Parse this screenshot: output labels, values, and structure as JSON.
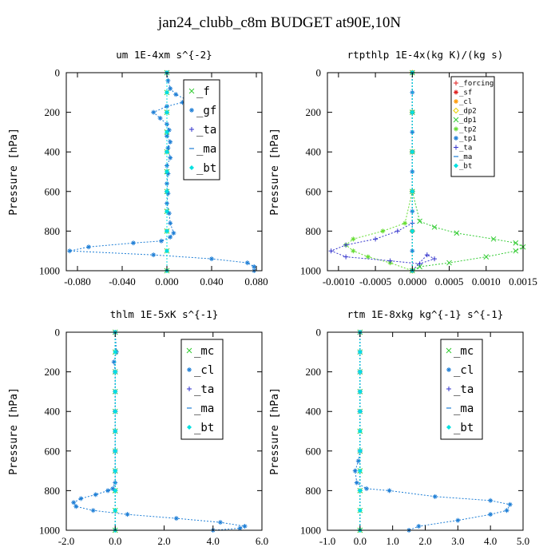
{
  "title": "jan24_clubb_c8m  BUDGET at90E,10N",
  "colors": {
    "green": "#33cc33",
    "blue": "#1f7fd6",
    "darkblue": "#3333cc",
    "cyan": "#00e0e0",
    "red": "#e02020",
    "orange": "#ff9900",
    "yellow": "#e8d000",
    "lime": "#66dd33",
    "frame": "#000000"
  },
  "chart_data": [
    {
      "type": "line",
      "title": "um   1E-4xm s^{-2}",
      "ylabel": "Pressure [hPa]",
      "xlim": [
        -0.09,
        0.085
      ],
      "ylim": [
        0,
        1000
      ],
      "y_reversed": true,
      "xticks": [
        -0.08,
        -0.04,
        0.0,
        0.04,
        0.08
      ],
      "xtick_labels": [
        "-0.080",
        "-0.040",
        "0.000",
        "0.040",
        "0.080"
      ],
      "yticks": [
        0,
        200,
        400,
        600,
        800,
        1000
      ],
      "ytick_labels": [
        "0",
        "200",
        "400",
        "600",
        "800",
        "1000"
      ],
      "legend_pos": "top-right",
      "series": [
        {
          "name": "_f",
          "color": "green",
          "marker": "x",
          "x": [
            0,
            0,
            0,
            0,
            0,
            0,
            0,
            0,
            0,
            0,
            0
          ],
          "y": [
            0,
            100,
            200,
            300,
            400,
            500,
            600,
            700,
            800,
            900,
            1000
          ]
        },
        {
          "name": "_gf",
          "color": "blue",
          "marker": "*",
          "x": [
            0,
            0.001,
            0.003,
            0.008,
            0.017,
            0.014,
            0.0,
            -0.012,
            -0.006,
            0.0,
            0.002,
            0.0,
            0.003,
            0.001,
            0.003,
            0.0,
            0.001,
            0.0,
            0.001,
            0.0,
            0.002,
            0.003,
            0.006,
            0.003,
            -0.005,
            -0.03,
            -0.07,
            -0.087,
            -0.012,
            0.04,
            0.072,
            0.078,
            0.078
          ],
          "y": [
            0,
            40,
            80,
            110,
            135,
            150,
            170,
            200,
            230,
            260,
            290,
            320,
            350,
            380,
            430,
            470,
            510,
            560,
            610,
            660,
            710,
            760,
            810,
            830,
            850,
            860,
            880,
            900,
            920,
            940,
            960,
            980,
            1000
          ]
        },
        {
          "name": "_ta",
          "color": "darkblue",
          "marker": "+",
          "x": [
            0,
            0,
            0,
            0,
            0,
            0
          ],
          "y": [
            0,
            200,
            400,
            600,
            800,
            1000
          ]
        },
        {
          "name": "_ma",
          "color": "blue",
          "marker": "-",
          "x": [
            0,
            0,
            0,
            0,
            0,
            0
          ],
          "y": [
            0,
            200,
            400,
            600,
            800,
            1000
          ]
        },
        {
          "name": "_bt",
          "color": "cyan",
          "marker": "◆",
          "x": [
            0,
            0,
            0,
            0,
            0,
            0,
            0,
            0,
            0,
            0,
            0
          ],
          "y": [
            0,
            100,
            200,
            300,
            400,
            500,
            600,
            700,
            800,
            900,
            1000
          ]
        }
      ]
    },
    {
      "type": "line",
      "title": "rtpthlp  1E-4x(kg K)/(kg s)",
      "ylabel": "Pressure [hPa]",
      "xlim": [
        -0.00115,
        0.0015
      ],
      "ylim": [
        0,
        1000
      ],
      "y_reversed": true,
      "xticks": [
        -0.001,
        -0.0005,
        0.0,
        0.0005,
        0.001,
        0.0015
      ],
      "xtick_labels": [
        "-0.0010",
        "-0.0005",
        "0.0000",
        "0.0005",
        "0.0010",
        "0.0015"
      ],
      "yticks": [
        0,
        200,
        400,
        600,
        800,
        1000
      ],
      "ytick_labels": [
        "0",
        "200",
        "400",
        "600",
        "800",
        "1000"
      ],
      "legend_pos": "top-right",
      "series": [
        {
          "name": "_forcing",
          "color": "red",
          "marker": "+",
          "x": [
            0,
            0,
            0,
            0,
            0,
            0
          ],
          "y": [
            0,
            200,
            400,
            600,
            800,
            1000
          ]
        },
        {
          "name": "_sf",
          "color": "red",
          "marker": "*",
          "x": [
            0,
            0,
            0,
            0,
            0,
            0
          ],
          "y": [
            0,
            200,
            400,
            600,
            800,
            1000
          ]
        },
        {
          "name": "_cl",
          "color": "orange",
          "marker": "*",
          "x": [
            0,
            0,
            0,
            0,
            0,
            0
          ],
          "y": [
            0,
            200,
            400,
            600,
            800,
            1000
          ]
        },
        {
          "name": "_dp2",
          "color": "yellow",
          "marker": "◇",
          "x": [
            0,
            0,
            0,
            0,
            0,
            0
          ],
          "y": [
            0,
            200,
            400,
            600,
            800,
            1000
          ]
        },
        {
          "name": "_dp1",
          "color": "green",
          "marker": "x",
          "x": [
            0,
            0,
            0,
            0,
            0.0001,
            0.0003,
            0.0006,
            0.0011,
            0.0014,
            0.0015,
            0.0014,
            0.001,
            0.0005,
            0.0001,
            0
          ],
          "y": [
            0,
            200,
            400,
            600,
            750,
            780,
            810,
            840,
            860,
            880,
            900,
            930,
            960,
            980,
            1000
          ]
        },
        {
          "name": "_tp2",
          "color": "lime",
          "marker": "*",
          "x": [
            0,
            0,
            0,
            0,
            -0.0001,
            -0.0004,
            -0.0008,
            -0.0009,
            -0.0008,
            -0.0006,
            -0.0003,
            0
          ],
          "y": [
            0,
            200,
            400,
            600,
            760,
            800,
            840,
            870,
            900,
            930,
            960,
            1000
          ]
        },
        {
          "name": "_tp1",
          "color": "blue",
          "marker": "*",
          "x": [
            0,
            0,
            0,
            0,
            0,
            0,
            0,
            0,
            0,
            0,
            0
          ],
          "y": [
            0,
            100,
            200,
            300,
            400,
            500,
            600,
            700,
            800,
            900,
            1000
          ]
        },
        {
          "name": "_ta",
          "color": "darkblue",
          "marker": "+",
          "x": [
            0,
            0,
            0,
            -0.0002,
            -0.0005,
            -0.0009,
            -0.0011,
            -0.0009,
            -0.0003,
            0.0001,
            0.0003,
            0.0002,
            0
          ],
          "y": [
            0,
            400,
            760,
            800,
            840,
            870,
            900,
            930,
            950,
            965,
            940,
            920,
            1000
          ]
        },
        {
          "name": "_ma",
          "color": "blue",
          "marker": "-",
          "x": [
            0,
            0,
            0,
            0,
            0,
            0
          ],
          "y": [
            0,
            200,
            400,
            600,
            800,
            1000
          ]
        },
        {
          "name": "_bt",
          "color": "cyan",
          "marker": "◆",
          "x": [
            0,
            0,
            0,
            0,
            0,
            0
          ],
          "y": [
            0,
            200,
            400,
            600,
            800,
            1000
          ]
        }
      ]
    },
    {
      "type": "line",
      "title": "thlm  1E-5xK s^{-1}",
      "ylabel": "Pressure [hPa]",
      "xlim": [
        -2.0,
        6.0
      ],
      "ylim": [
        0,
        1000
      ],
      "y_reversed": true,
      "xticks": [
        -2,
        0,
        2,
        4,
        6
      ],
      "xtick_labels": [
        "-2.0",
        "0.0",
        "2.0",
        "4.0",
        "6.0"
      ],
      "yticks": [
        0,
        200,
        400,
        600,
        800,
        1000
      ],
      "ytick_labels": [
        "0",
        "200",
        "400",
        "600",
        "800",
        "1000"
      ],
      "legend_pos": "top-right",
      "series": [
        {
          "name": "_mc",
          "color": "green",
          "marker": "x",
          "x": [
            0,
            0,
            0,
            0,
            0,
            0,
            0,
            0,
            0,
            0,
            0
          ],
          "y": [
            0,
            100,
            200,
            300,
            400,
            500,
            600,
            700,
            800,
            900,
            1000
          ]
        },
        {
          "name": "_cl",
          "color": "blue",
          "marker": "*",
          "x": [
            0,
            0.05,
            -0.05,
            0,
            0,
            0,
            0,
            0,
            0,
            0,
            -0.1,
            -0.3,
            -0.8,
            -1.4,
            -1.7,
            -1.6,
            -0.9,
            0.5,
            2.5,
            4.3,
            5.3,
            5.1,
            4.0
          ],
          "y": [
            0,
            100,
            150,
            200,
            300,
            400,
            500,
            600,
            700,
            760,
            790,
            800,
            820,
            840,
            860,
            880,
            900,
            920,
            940,
            960,
            980,
            990,
            1000
          ]
        },
        {
          "name": "_ta",
          "color": "darkblue",
          "marker": "+",
          "x": [
            0,
            0,
            0,
            0,
            0,
            0
          ],
          "y": [
            0,
            200,
            400,
            600,
            800,
            1000
          ]
        },
        {
          "name": "_ma",
          "color": "blue",
          "marker": "-",
          "x": [
            0,
            0,
            0,
            0,
            0,
            0
          ],
          "y": [
            0,
            200,
            400,
            600,
            800,
            1000
          ]
        },
        {
          "name": "_bt",
          "color": "cyan",
          "marker": "◆",
          "x": [
            0,
            0,
            0,
            0,
            0,
            0,
            0,
            0,
            0,
            0,
            0
          ],
          "y": [
            0,
            100,
            200,
            300,
            400,
            500,
            600,
            700,
            800,
            900,
            1000
          ]
        }
      ]
    },
    {
      "type": "line",
      "title": "rtm  1E-8xkg kg^{-1} s^{-1}",
      "ylabel": "Pressure [hPa]",
      "xlim": [
        -1.0,
        5.0
      ],
      "ylim": [
        0,
        1000
      ],
      "y_reversed": true,
      "xticks": [
        -1,
        0,
        1,
        2,
        3,
        4,
        5
      ],
      "xtick_labels": [
        "-1.0",
        "0.0",
        "1.0",
        "2.0",
        "3.0",
        "4.0",
        "5.0"
      ],
      "yticks": [
        0,
        200,
        400,
        600,
        800,
        1000
      ],
      "ytick_labels": [
        "0",
        "200",
        "400",
        "600",
        "800",
        "1000"
      ],
      "legend_pos": "top-right",
      "series": [
        {
          "name": "_mc",
          "color": "green",
          "marker": "x",
          "x": [
            0,
            0,
            0,
            0,
            0,
            0,
            0,
            0,
            0,
            0,
            0
          ],
          "y": [
            0,
            100,
            200,
            300,
            400,
            500,
            600,
            700,
            800,
            900,
            1000
          ]
        },
        {
          "name": "_cl",
          "color": "blue",
          "marker": "*",
          "x": [
            0,
            0,
            0,
            0,
            0,
            0,
            -0.05,
            -0.15,
            -0.1,
            0.2,
            0.9,
            2.3,
            4.0,
            4.6,
            4.5,
            4.0,
            3.0,
            1.8,
            1.5
          ],
          "y": [
            0,
            100,
            200,
            300,
            400,
            600,
            650,
            700,
            760,
            790,
            800,
            830,
            850,
            870,
            900,
            920,
            950,
            980,
            1000
          ]
        },
        {
          "name": "_ta",
          "color": "darkblue",
          "marker": "+",
          "x": [
            0,
            0,
            0,
            0,
            0,
            0
          ],
          "y": [
            0,
            200,
            400,
            600,
            800,
            1000
          ]
        },
        {
          "name": "_ma",
          "color": "blue",
          "marker": "-",
          "x": [
            0,
            0,
            0,
            0,
            0,
            0
          ],
          "y": [
            0,
            200,
            400,
            600,
            800,
            1000
          ]
        },
        {
          "name": "_bt",
          "color": "cyan",
          "marker": "◆",
          "x": [
            0,
            0,
            0,
            0,
            0,
            0,
            0,
            0,
            0,
            0,
            0
          ],
          "y": [
            0,
            100,
            200,
            300,
            400,
            500,
            600,
            700,
            800,
            900,
            1000
          ]
        }
      ]
    }
  ]
}
